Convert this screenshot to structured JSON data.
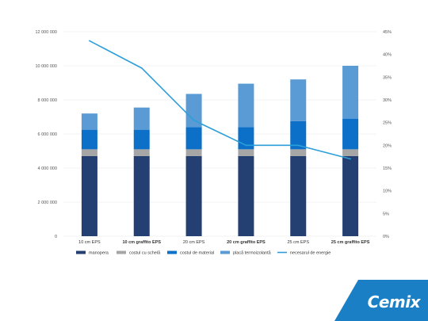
{
  "chart_data": {
    "type": "bar",
    "stacked": true,
    "categories": [
      "10 cm EPS",
      "10 cm graffito EPS",
      "20 cm EPS",
      "20 cm graffito EPS",
      "25 cm EPS",
      "25 cm graffito EPS"
    ],
    "bold_categories": [
      false,
      true,
      false,
      true,
      false,
      true
    ],
    "series": [
      {
        "name": "manopera",
        "color": "#243f72",
        "values": [
          4700000,
          4700000,
          4700000,
          4700000,
          4700000,
          4700000
        ]
      },
      {
        "name": "costul cu schelă",
        "color": "#a6a6a6",
        "values": [
          400000,
          400000,
          400000,
          400000,
          400000,
          400000
        ]
      },
      {
        "name": "costul de material",
        "color": "#0d70c8",
        "values": [
          1150000,
          1150000,
          1300000,
          1300000,
          1650000,
          1800000
        ]
      },
      {
        "name": "placă termoizolantă",
        "color": "#5b9bd5",
        "values": [
          950000,
          1300000,
          1950000,
          2550000,
          2450000,
          3100000
        ]
      }
    ],
    "line_series": {
      "name": "necesarul de energie",
      "color": "#2c9fd8",
      "axis": "right",
      "values": [
        43,
        37,
        25.5,
        20,
        20,
        17
      ]
    },
    "ylim": [
      0,
      12000000
    ],
    "y_ticks": [
      "0",
      "2 000 000",
      "4 000 000",
      "6 000 000",
      "8 000 000",
      "10 000 000",
      "12 000 000"
    ],
    "y2lim": [
      0,
      45
    ],
    "y2_ticks": [
      "0%",
      "5%",
      "10%",
      "15%",
      "20%",
      "25%",
      "30%",
      "35%",
      "40%",
      "45%"
    ],
    "grid": true,
    "legend_position": "bottom"
  },
  "brand": {
    "name": "Cemix",
    "color": "#1a7fc4"
  }
}
